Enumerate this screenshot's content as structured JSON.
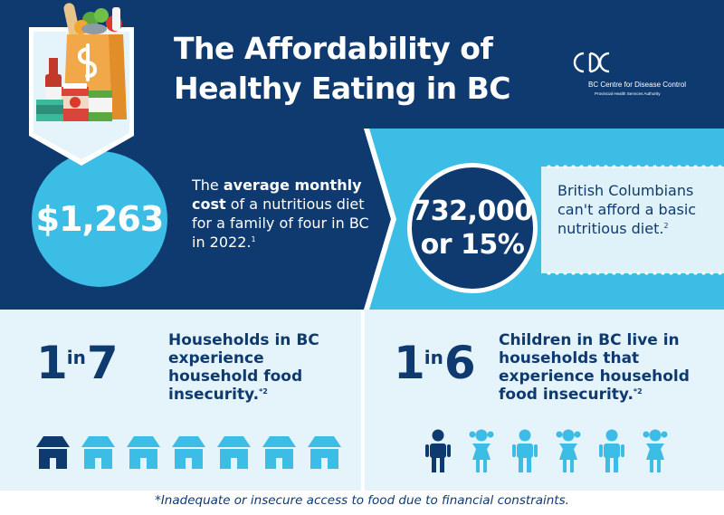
{
  "header": {
    "title_line1": "The Affordability of",
    "title_line2": "Healthy Eating in BC",
    "logo_name": "BC Centre for Disease Control",
    "logo_sub": "Provincial Health Services Authority"
  },
  "stats": {
    "cost_value": "$1,263",
    "cost_pre": "The ",
    "cost_bold": "average monthly cost",
    "cost_rest": " of a nutritious diet for a family of four in BC in 2022.",
    "cost_ref": "1",
    "afford_value_line1": "732,000",
    "afford_value_line2": "or 15%",
    "afford_text": "British Columbians can't afford a basic nutritious diet.",
    "afford_ref": "2"
  },
  "households": {
    "numerator": "1",
    "in": "in",
    "denominator": "7",
    "text": "Households in BC experience household food insecurity.",
    "ref": "*2",
    "total": 7,
    "highlighted": 1
  },
  "children": {
    "numerator": "1",
    "in": "in",
    "denominator": "6",
    "text": "Children in BC live in households that experience household food insecurity.",
    "ref": "*2",
    "total": 6,
    "highlighted": 1
  },
  "footnote": "*Inadequate or insecure access to food due to financial constraints.",
  "colors": {
    "navy": "#0f3a70",
    "sky": "#3bbde5",
    "pale": "#e5f4fa",
    "band_light": "#dff2f9"
  },
  "icons": {
    "bag": "grocery-bag-icon",
    "house": "house-icon",
    "child": "child-icon"
  }
}
